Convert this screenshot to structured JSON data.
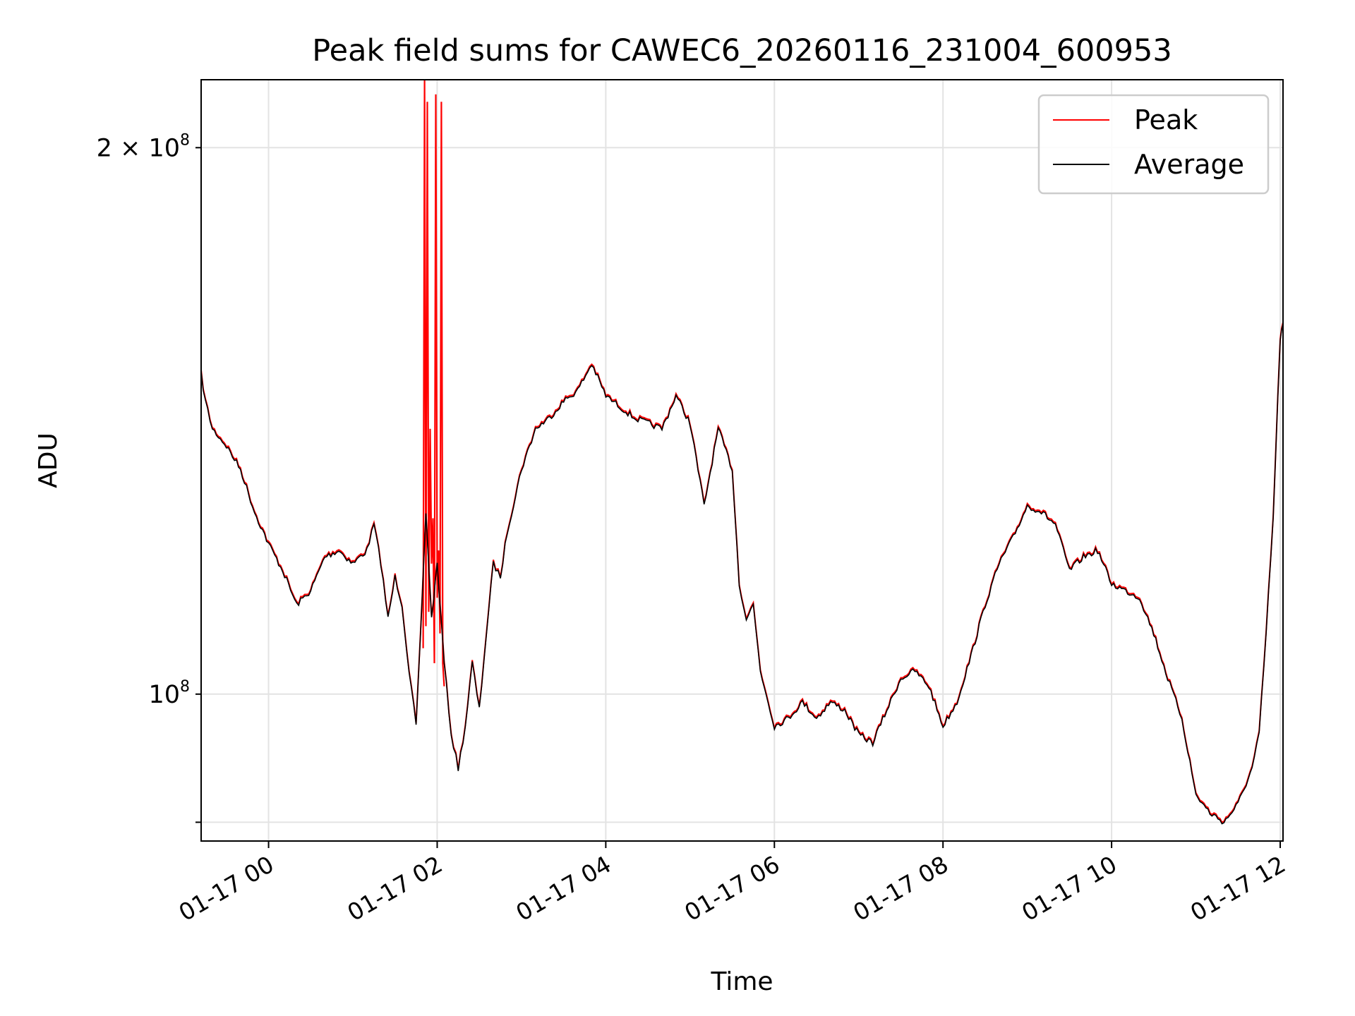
{
  "chart_data": {
    "type": "line",
    "title": "Peak field sums for CAWEC6_20260116_231004_600953",
    "xlabel": "Time",
    "ylabel": "ADU",
    "y_scale": "log",
    "ylim": [
      83000000,
      218000000
    ],
    "xlim": [
      "2026-01-16 23:12",
      "2026-01-17 12:02"
    ],
    "grid": true,
    "legend": "top-right",
    "x_ticks": [
      "01-17 00",
      "01-17 02",
      "01-17 04",
      "01-17 06",
      "01-17 08",
      "01-17 10",
      "01-17 12"
    ],
    "x_tick_values": [
      "2026-01-17 00:00",
      "2026-01-17 02:00",
      "2026-01-17 04:00",
      "2026-01-17 06:00",
      "2026-01-17 08:00",
      "2026-01-17 10:00",
      "2026-01-17 12:00"
    ],
    "y_ticks": [
      {
        "value": 200000000,
        "label": "2 × 10",
        "exp": "8"
      },
      {
        "value": 100000000,
        "label": "10",
        "exp": "8"
      },
      {
        "value": 85000000,
        "label": "",
        "exp": ""
      }
    ],
    "series": [
      {
        "name": "Peak",
        "color": "#ff0000",
        "x": [
          "2026-01-17 01:50",
          "2026-01-17 01:51",
          "2026-01-17 01:52",
          "2026-01-17 01:53",
          "2026-01-17 01:54",
          "2026-01-17 01:55",
          "2026-01-17 01:56",
          "2026-01-17 01:57",
          "2026-01-17 01:58",
          "2026-01-17 01:59",
          "2026-01-17 02:00",
          "2026-01-17 02:01",
          "2026-01-17 02:02",
          "2026-01-17 02:03",
          "2026-01-17 02:04",
          "2026-01-17 02:05"
        ],
        "values": [
          106000000,
          218000000,
          109000000,
          212000000,
          111000000,
          140000000,
          118000000,
          125000000,
          104000000,
          214000000,
          113000000,
          120000000,
          108000000,
          212000000,
          104000000,
          101000000
        ]
      },
      {
        "name": "Average",
        "color": "#000000",
        "x": [
          "2026-01-16 23:12",
          "2026-01-16 23:15",
          "2026-01-16 23:20",
          "2026-01-16 23:30",
          "2026-01-16 23:40",
          "2026-01-16 23:50",
          "2026-01-17 00:00",
          "2026-01-17 00:10",
          "2026-01-17 00:20",
          "2026-01-17 00:30",
          "2026-01-17 00:40",
          "2026-01-17 00:50",
          "2026-01-17 01:00",
          "2026-01-17 01:10",
          "2026-01-17 01:15",
          "2026-01-17 01:20",
          "2026-01-17 01:25",
          "2026-01-17 01:30",
          "2026-01-17 01:35",
          "2026-01-17 01:40",
          "2026-01-17 01:45",
          "2026-01-17 01:48",
          "2026-01-17 01:52",
          "2026-01-17 01:56",
          "2026-01-17 02:00",
          "2026-01-17 02:05",
          "2026-01-17 02:10",
          "2026-01-17 02:15",
          "2026-01-17 02:20",
          "2026-01-17 02:25",
          "2026-01-17 02:30",
          "2026-01-17 02:35",
          "2026-01-17 02:40",
          "2026-01-17 02:45",
          "2026-01-17 02:50",
          "2026-01-17 03:00",
          "2026-01-17 03:10",
          "2026-01-17 03:20",
          "2026-01-17 03:30",
          "2026-01-17 03:40",
          "2026-01-17 03:50",
          "2026-01-17 04:00",
          "2026-01-17 04:10",
          "2026-01-17 04:20",
          "2026-01-17 04:30",
          "2026-01-17 04:40",
          "2026-01-17 04:50",
          "2026-01-17 05:00",
          "2026-01-17 05:10",
          "2026-01-17 05:20",
          "2026-01-17 05:30",
          "2026-01-17 05:35",
          "2026-01-17 05:40",
          "2026-01-17 05:45",
          "2026-01-17 05:50",
          "2026-01-17 06:00",
          "2026-01-17 06:10",
          "2026-01-17 06:20",
          "2026-01-17 06:30",
          "2026-01-17 06:40",
          "2026-01-17 06:50",
          "2026-01-17 07:00",
          "2026-01-17 07:10",
          "2026-01-17 07:20",
          "2026-01-17 07:30",
          "2026-01-17 07:40",
          "2026-01-17 07:50",
          "2026-01-17 08:00",
          "2026-01-17 08:10",
          "2026-01-17 08:20",
          "2026-01-17 08:30",
          "2026-01-17 08:40",
          "2026-01-17 08:50",
          "2026-01-17 09:00",
          "2026-01-17 09:10",
          "2026-01-17 09:20",
          "2026-01-17 09:30",
          "2026-01-17 09:40",
          "2026-01-17 09:50",
          "2026-01-17 10:00",
          "2026-01-17 10:10",
          "2026-01-17 10:20",
          "2026-01-17 10:30",
          "2026-01-17 10:40",
          "2026-01-17 10:50",
          "2026-01-17 11:00",
          "2026-01-17 11:10",
          "2026-01-17 11:20",
          "2026-01-17 11:30",
          "2026-01-17 11:40",
          "2026-01-17 11:45",
          "2026-01-17 11:50",
          "2026-01-17 11:55",
          "2026-01-17 12:00",
          "2026-01-17 12:02"
        ],
        "values": [
          150000000,
          145000000,
          140000000,
          137000000,
          133000000,
          126000000,
          121000000,
          117000000,
          112000000,
          114000000,
          119000000,
          120000000,
          118000000,
          120000000,
          124000000,
          118000000,
          110000000,
          116000000,
          112000000,
          103000000,
          96000000,
          107000000,
          126000000,
          110000000,
          118000000,
          104000000,
          95000000,
          91000000,
          96000000,
          104000000,
          98000000,
          108000000,
          118000000,
          116000000,
          123000000,
          133000000,
          140000000,
          142000000,
          145000000,
          147000000,
          152000000,
          146000000,
          144000000,
          142000000,
          141000000,
          140000000,
          146000000,
          141000000,
          127000000,
          140000000,
          133000000,
          115000000,
          110000000,
          112000000,
          103000000,
          96000000,
          97000000,
          99000000,
          97000000,
          99000000,
          98000000,
          95000000,
          94000000,
          98000000,
          102000000,
          103000000,
          101000000,
          96000000,
          99000000,
          105000000,
          112000000,
          118000000,
          122000000,
          127000000,
          126000000,
          124000000,
          117000000,
          119000000,
          120000000,
          115000000,
          114000000,
          113000000,
          108000000,
          102000000,
          97000000,
          88000000,
          86000000,
          85000000,
          87000000,
          91000000,
          95000000,
          108000000,
          125000000,
          157000000,
          160000000
        ]
      }
    ]
  }
}
